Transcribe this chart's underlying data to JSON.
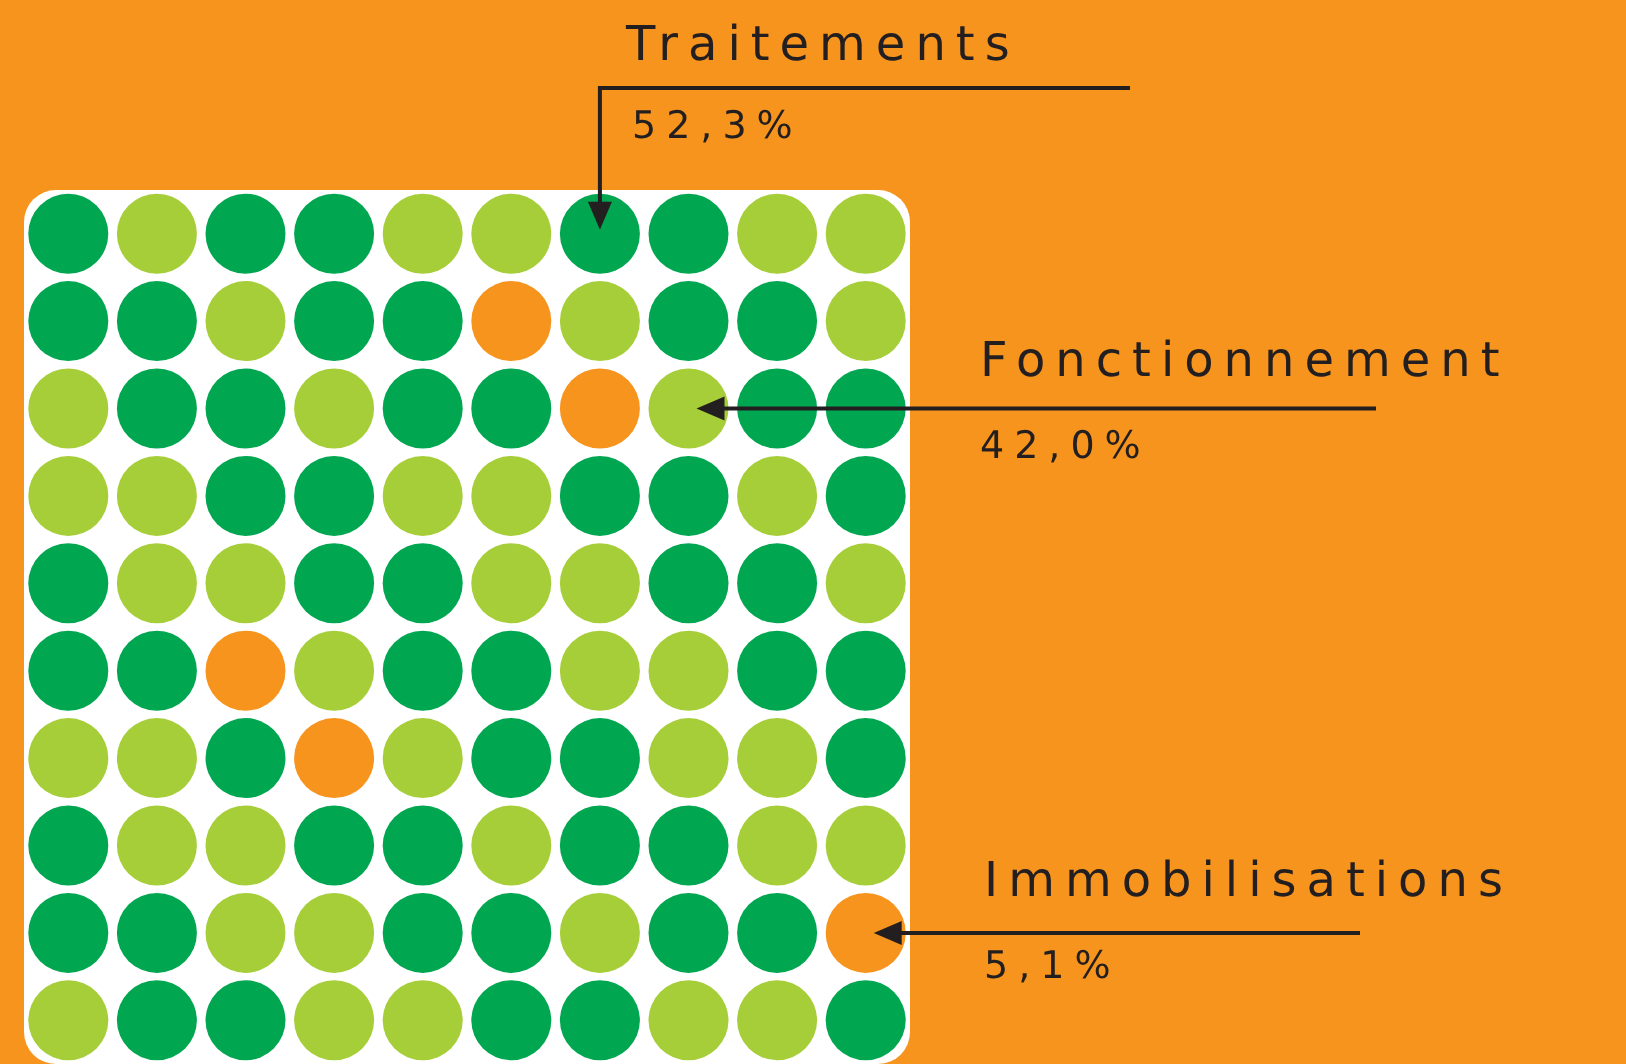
{
  "chart_data": {
    "type": "other",
    "categories": [
      "Traitements",
      "Fonctionnement",
      "Immobilisations"
    ],
    "values": [
      52.3,
      42.0,
      5.1
    ],
    "colors": [
      "#00a650",
      "#a6ce39",
      "#f7941d"
    ],
    "value_labels": [
      "52,3%",
      "42,0%",
      "5,1%"
    ]
  }
}
